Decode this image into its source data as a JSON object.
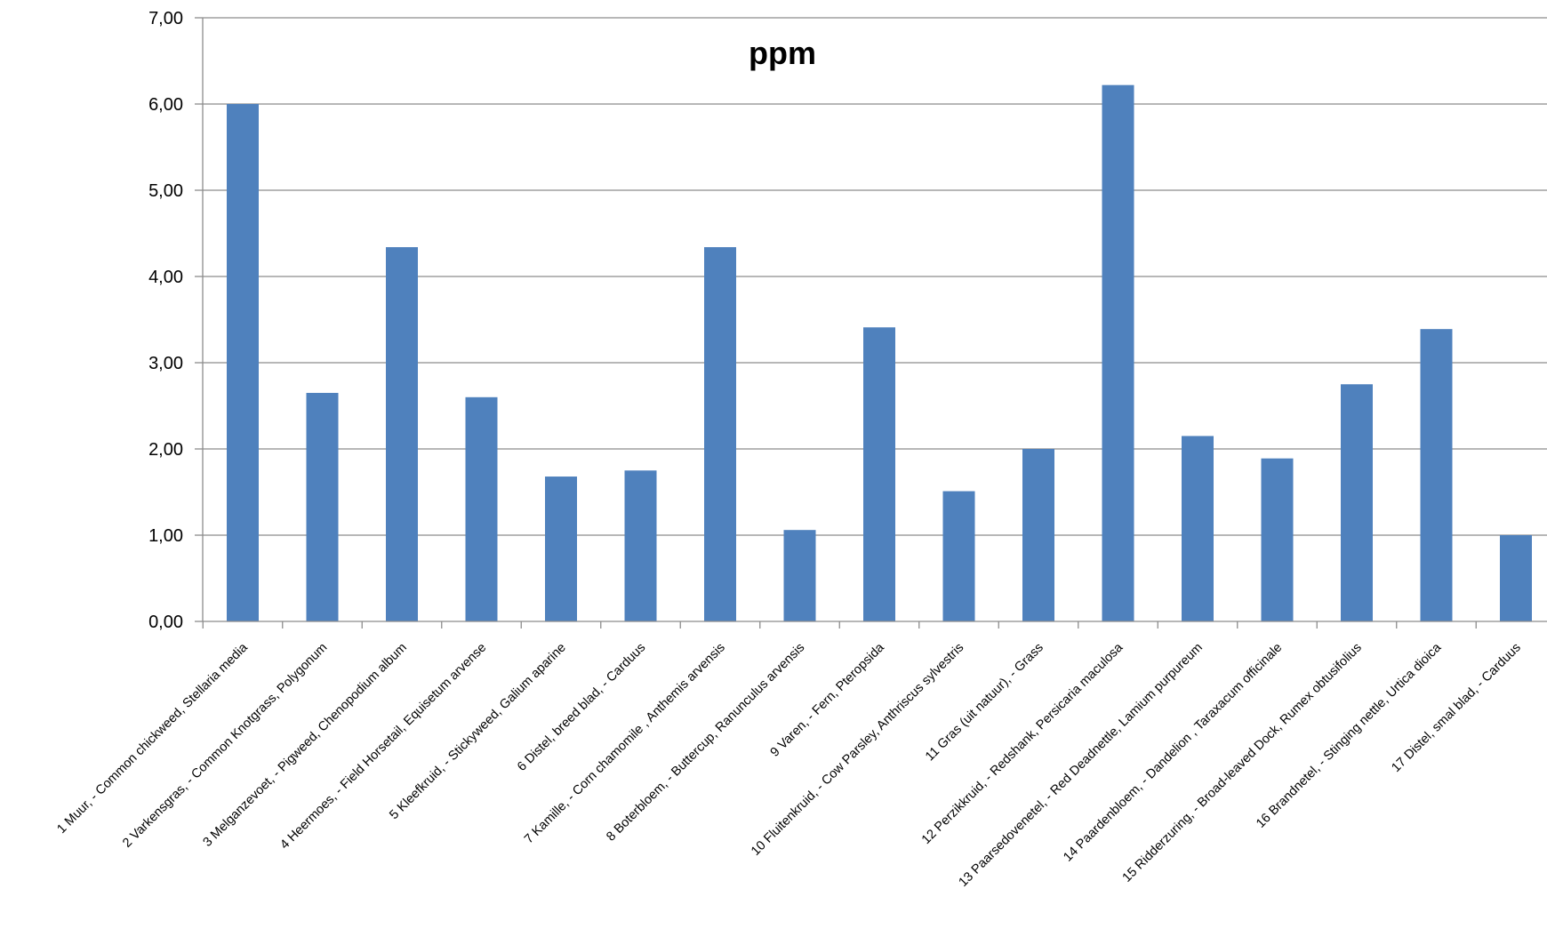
{
  "chart_data": {
    "type": "bar",
    "title": "ppm",
    "xlabel": "",
    "ylabel": "",
    "ylim": [
      0,
      7
    ],
    "yticks": [
      "0,00",
      "1,00",
      "2,00",
      "3,00",
      "4,00",
      "5,00",
      "6,00",
      "7,00"
    ],
    "grid": true,
    "legend": "none",
    "bar_color": "#4F81BD",
    "grid_color": "#8C8C8C",
    "axis_color": "#8C8C8C",
    "categories": [
      "1 Muur, - Common chickweed, Stellaria media",
      "2 Varkensgras, - Common Knotgrass, Polygonum",
      "3 Melganzevoet, - Pigweed, Chenopodium album",
      "4 Heermoes, - Field Horsetail, Equisetum arvense",
      "5 Kleefkruid, - Stickyweed, Galium aparine",
      "6 Distel, breed blad, - Carduus",
      "7 Kamille, - Corn chamomile , Anthemis arvensis",
      "8 Boterbloem, - Buttercup, Ranunculus arvensis",
      "9 Varen, - Fern, Pteropsida",
      "10 Fluitenkruid, - Cow Parsley, Anthriscus sylvestris",
      "11 Gras (uit natuur), - Grass",
      "12 Perzikkruid, - Redshank, Persicaria maculosa",
      "13 Paarsedovenetel, - Red Deadnettle, Lamium purpureum",
      "14 Paardenbloem, - Dandelion , Taraxacum officinale",
      "15 Ridderzuring, - Broad-leaved Dock, Rumex obtusifolius",
      "16 Brandnetel, - Stinging nettle, Urtica dioica",
      "17 Distel, smal blad, - Carduus"
    ],
    "values": [
      6.0,
      2.65,
      4.34,
      2.6,
      1.68,
      1.75,
      4.34,
      1.06,
      3.41,
      1.51,
      2.0,
      6.22,
      2.15,
      1.89,
      2.75,
      3.39,
      1.0
    ]
  }
}
